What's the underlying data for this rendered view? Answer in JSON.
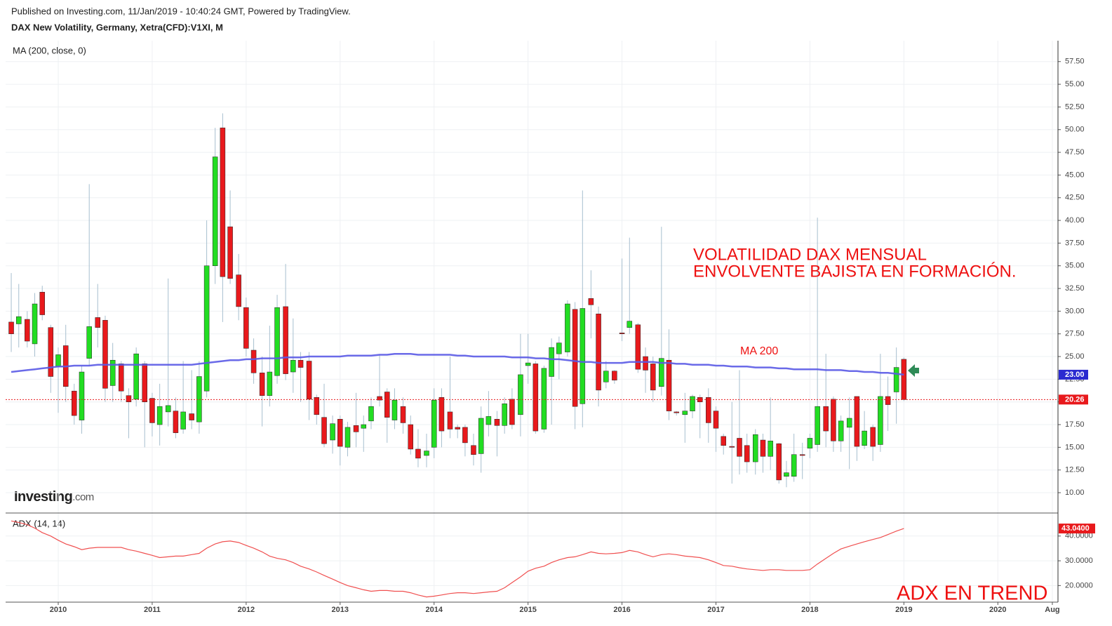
{
  "header": {
    "published": "Published on Investing.com, 11/Jan/2019 - 10:40:24 GMT, Powered by TradingView.",
    "logo": [
      "Investing",
      ".com"
    ]
  },
  "chart_data": {
    "type": "candlestick",
    "title": "DAX New Volatility, Germany, Xetra(CFD):V1XI, M",
    "x": [
      2009.5,
      2009.58,
      2009.67,
      2009.75,
      2009.83,
      2009.92,
      2010,
      2010.08,
      2010.17,
      2010.25,
      2010.33,
      2010.42,
      2010.5,
      2010.58,
      2010.67,
      2010.75,
      2010.83,
      2010.92,
      2011,
      2011.08,
      2011.17,
      2011.25,
      2011.33,
      2011.42,
      2011.5,
      2011.58,
      2011.67,
      2011.75,
      2011.83,
      2011.92,
      2012,
      2012.08,
      2012.17,
      2012.25,
      2012.33,
      2012.42,
      2012.5,
      2012.58,
      2012.67,
      2012.75,
      2012.83,
      2012.92,
      2013,
      2013.08,
      2013.17,
      2013.25,
      2013.33,
      2013.42,
      2013.5,
      2013.58,
      2013.67,
      2013.75,
      2013.83,
      2013.92,
      2014,
      2014.08,
      2014.17,
      2014.25,
      2014.33,
      2014.42,
      2014.5,
      2014.58,
      2014.67,
      2014.75,
      2014.83,
      2014.92,
      2015,
      2015.08,
      2015.17,
      2015.25,
      2015.33,
      2015.42,
      2015.5,
      2015.58,
      2015.67,
      2015.75,
      2015.83,
      2015.92,
      2016,
      2016.08,
      2016.17,
      2016.25,
      2016.33,
      2016.42,
      2016.5,
      2016.58,
      2016.67,
      2016.75,
      2016.83,
      2016.92,
      2017,
      2017.08,
      2017.17,
      2017.25,
      2017.33,
      2017.42,
      2017.5,
      2017.58,
      2017.67,
      2017.75,
      2017.83,
      2017.92,
      2018,
      2018.08,
      2018.17,
      2018.25,
      2018.33,
      2018.42,
      2018.5,
      2018.58,
      2018.67,
      2018.75,
      2018.83,
      2018.92,
      2019
    ],
    "open": [
      28.8,
      28.6,
      29.1,
      26.4,
      32.1,
      28.2,
      23.9,
      26.2,
      21.2,
      18,
      24.8,
      29.3,
      29,
      21.8,
      24.2,
      20.7,
      20.3,
      24.2,
      20.4,
      17.5,
      18.9,
      19,
      17,
      18.7,
      17.8,
      21.2,
      35,
      50.2,
      39.3,
      34,
      30.4,
      25.7,
      23.2,
      20.7,
      22.9,
      30.5,
      23.3,
      24.6,
      24.5,
      20.5,
      18.3,
      15.8,
      18.1,
      15,
      17.4,
      17.1,
      17.9,
      20.6,
      21.1,
      18,
      19.5,
      17.5,
      14.8,
      14.1,
      15,
      20.5,
      18.9,
      17.2,
      17.2,
      15.2,
      14.3,
      17.5,
      18.1,
      17.4,
      20.3,
      18.6,
      24,
      24.2,
      17,
      22.8,
      25.3,
      25.5,
      30.2,
      19.8,
      31.4,
      29.7,
      22.2,
      23.4,
      27.6,
      28.2,
      28.5,
      25,
      24.2,
      21.7,
      24.6,
      18.9,
      18.6,
      19,
      20.5,
      20.5,
      19,
      16.2,
      15.1,
      16,
      15.2,
      13.4,
      15.8,
      14,
      15.4,
      11.8,
      11.8,
      14.2,
      14.9,
      15.3,
      19.5,
      20.3,
      15.7,
      17.2,
      20.6,
      15.2,
      17.2,
      15.3,
      20.6,
      21.1,
      24.7
    ],
    "high": [
      34.2,
      33,
      30,
      32,
      32.8,
      28.5,
      26,
      28.5,
      22,
      24,
      44,
      33,
      29.5,
      26.5,
      24.5,
      21.5,
      26,
      24.5,
      21,
      22,
      33.6,
      20.5,
      24.5,
      23.5,
      24.5,
      40,
      50.2,
      51.8,
      43.3,
      36.3,
      31.5,
      27,
      25,
      28.4,
      31.8,
      35.2,
      29.2,
      25.5,
      25.5,
      20.8,
      22,
      18.5,
      18.5,
      17.8,
      21,
      18.5,
      20.5,
      25.2,
      21.5,
      21.5,
      20.5,
      18.5,
      17,
      16.5,
      21.5,
      21.5,
      25,
      17.5,
      17.5,
      16.5,
      19.5,
      21.2,
      19,
      20.5,
      21.5,
      27.5,
      27.5,
      24.5,
      24,
      27,
      27.2,
      31.2,
      31,
      43.3,
      34.5,
      30.5,
      24.5,
      23.5,
      35.8,
      38.1,
      28.7,
      26,
      25,
      39.3,
      28,
      19,
      21,
      20.8,
      20.8,
      21.5,
      19.5,
      16.5,
      20,
      23.5,
      16.5,
      17,
      16.5,
      20.5,
      15.5,
      13.5,
      16.5,
      15.5,
      16.5,
      40.3,
      25.3,
      20.6,
      18.5,
      20.5,
      20.6,
      19,
      17.5,
      25.3,
      22.8,
      26,
      24.9
    ],
    "low": [
      25.5,
      26,
      26,
      25,
      29,
      21,
      18.8,
      20,
      17.5,
      16.5,
      24,
      26,
      20,
      20,
      20,
      16,
      19.5,
      15,
      16.2,
      15.2,
      17.3,
      16,
      16.5,
      17,
      16.5,
      20.5,
      33,
      28.8,
      33,
      29,
      25,
      22,
      17.3,
      19.5,
      22,
      22.4,
      21,
      20,
      18,
      17.5,
      15,
      14.3,
      13,
      14,
      15,
      14.5,
      17,
      19.5,
      15.5,
      17,
      16.5,
      14.2,
      12.8,
      12.8,
      13.8,
      15,
      16,
      16,
      14,
      13,
      12.2,
      16.2,
      14,
      16.5,
      17,
      16.2,
      22,
      16.5,
      16.6,
      17.5,
      22.5,
      25,
      17,
      17.2,
      27,
      19.5,
      21.5,
      22,
      26.7,
      27.5,
      23.2,
      21,
      20,
      20.7,
      18,
      18.5,
      15.5,
      18.2,
      16,
      15.5,
      14.5,
      14.2,
      11,
      12,
      12.2,
      12,
      12.2,
      12.5,
      11,
      10.6,
      11.2,
      11.5,
      13.8,
      14.5,
      15,
      14.5,
      14.5,
      12.6,
      13.5,
      14.8,
      13.5,
      14.5,
      16.8,
      17.6,
      20.1
    ],
    "close": [
      27.5,
      29.4,
      26.7,
      30.8,
      29.6,
      22.8,
      25.2,
      21.7,
      18.5,
      23.3,
      28.3,
      28.2,
      21.5,
      24.6,
      21.2,
      20,
      25.3,
      20,
      17.7,
      19.5,
      19.6,
      16.6,
      18.9,
      18,
      22.8,
      35,
      47,
      33.8,
      33.6,
      30.5,
      25.9,
      23.2,
      20.7,
      23.3,
      30.4,
      23.1,
      24.6,
      23.8,
      20.3,
      18.6,
      15.4,
      17.6,
      15.1,
      17.2,
      16.7,
      17.5,
      19.5,
      20.2,
      18.3,
      20.2,
      17.7,
      14.8,
      13.8,
      14.6,
      20.2,
      16.8,
      17,
      17,
      15.5,
      14.2,
      18.2,
      18.4,
      17.4,
      19.8,
      17.5,
      23,
      24.3,
      16.8,
      23.7,
      26,
      26.5,
      30.8,
      19.5,
      30.3,
      30.7,
      21.3,
      23.4,
      22.4,
      27.5,
      28.9,
      23.6,
      23.5,
      21.3,
      24.8,
      19,
      18.8,
      19,
      20.6,
      20,
      17.7,
      17.1,
      15.2,
      15,
      14,
      13.4,
      16.4,
      14,
      15.7,
      11.4,
      12.2,
      14.2,
      14.1,
      16,
      19.5,
      16.8,
      15.7,
      17.9,
      18.2,
      15.1,
      16.8,
      15.1,
      20.6,
      19.7,
      23.8,
      20.26
    ],
    "up_color": "#22dd22",
    "down_color": "#e8191c",
    "wick_color": "#a7bfcf",
    "xlim": [
      2009.44,
      2020.64
    ],
    "xticks": [
      2010,
      2011,
      2012,
      2013,
      2014,
      2015,
      2016,
      2017,
      2018,
      2019,
      2020,
      {
        "value": 2020.58,
        "label": "Aug"
      }
    ],
    "ylim": [
      7.76,
      59.8
    ],
    "yticks": [
      {
        "value": 10,
        "label": "10.00"
      },
      {
        "value": 12.5,
        "label": "12.50"
      },
      {
        "value": 15,
        "label": "15.00"
      },
      {
        "value": 17.5,
        "label": "17.50"
      },
      {
        "value": 20,
        "label": "20.00"
      },
      {
        "value": 22.5,
        "label": "22.50"
      },
      {
        "value": 25,
        "label": "25.00"
      },
      {
        "value": 27.5,
        "label": "27.50"
      },
      {
        "value": 30,
        "label": "30.00"
      },
      {
        "value": 32.5,
        "label": "32.50"
      },
      {
        "value": 35,
        "label": "35.00"
      },
      {
        "value": 37.5,
        "label": "37.50"
      },
      {
        "value": 40,
        "label": "40.00"
      },
      {
        "value": 42.5,
        "label": "42.50"
      },
      {
        "value": 45,
        "label": "45.00"
      },
      {
        "value": 47.5,
        "label": "47.50"
      },
      {
        "value": 50,
        "label": "50.00"
      },
      {
        "value": 52.5,
        "label": "52.50"
      },
      {
        "value": 55,
        "label": "55.00"
      },
      {
        "value": 57.5,
        "label": "57.50"
      }
    ],
    "grid": true,
    "series": [
      {
        "name": "MA (200, close, 0)",
        "color": "#5a5ae6",
        "values": [
          23.3,
          23.4,
          23.5,
          23.6,
          23.7,
          23.8,
          23.9,
          23.9,
          24.0,
          24.0,
          24.0,
          24.1,
          24.1,
          24.1,
          24.1,
          24.1,
          24.1,
          24.1,
          24.1,
          24.1,
          24.1,
          24.1,
          24.1,
          24.1,
          24.2,
          24.3,
          24.4,
          24.5,
          24.6,
          24.6,
          24.7,
          24.7,
          24.8,
          24.8,
          24.8,
          24.9,
          24.9,
          24.9,
          25.0,
          25.0,
          25.0,
          25.0,
          25.0,
          25.1,
          25.1,
          25.1,
          25.1,
          25.2,
          25.2,
          25.3,
          25.3,
          25.3,
          25.2,
          25.2,
          25.2,
          25.2,
          25.2,
          25.1,
          25.1,
          25.0,
          25.0,
          25.0,
          25.0,
          25.0,
          24.9,
          24.9,
          24.9,
          24.8,
          24.8,
          24.7,
          24.7,
          24.6,
          24.5,
          24.4,
          24.4,
          24.3,
          24.3,
          24.3,
          24.3,
          24.4,
          24.4,
          24.4,
          24.4,
          24.3,
          24.3,
          24.2,
          24.2,
          24.1,
          24.1,
          24.1,
          24.0,
          24.0,
          23.9,
          23.9,
          23.9,
          23.8,
          23.8,
          23.8,
          23.7,
          23.7,
          23.6,
          23.6,
          23.6,
          23.6,
          23.5,
          23.5,
          23.5,
          23.4,
          23.4,
          23.3,
          23.3,
          23.2,
          23.2,
          23.1,
          23.0
        ],
        "value_labels": [
          null,
          null,
          null,
          null,
          null,
          null,
          null,
          null,
          null,
          null,
          null,
          null,
          null,
          null,
          null,
          null,
          null,
          null,
          null,
          null,
          null,
          null,
          null,
          null,
          null,
          null,
          null,
          null,
          null,
          null,
          null,
          null,
          null,
          null,
          null,
          null,
          null,
          null,
          null,
          null,
          null,
          null,
          null,
          null,
          null,
          null,
          null,
          null,
          null,
          null,
          null,
          null,
          null,
          null,
          null,
          null,
          null,
          null,
          null,
          null,
          null,
          null,
          null,
          null,
          null,
          null,
          null,
          null,
          null,
          null,
          null,
          null,
          null,
          null,
          null,
          null,
          null,
          null,
          null,
          null,
          null,
          null,
          null,
          null,
          null,
          null,
          null,
          null,
          null,
          null,
          null,
          null,
          null,
          null,
          null,
          null,
          null,
          null,
          null,
          null,
          null,
          null,
          null,
          null,
          null,
          null,
          null,
          null,
          null,
          null,
          null,
          null,
          null,
          null,
          "23.00"
        ]
      }
    ],
    "annotations": [
      "VOLATILIDAD DAX MENSUAL",
      "ENVOLVENTE BAJISTA EN FORMACIÓN.",
      "MA 200",
      "ADX EN TREND"
    ],
    "indicator": {
      "type": "line",
      "name": "ADX (14, 14)",
      "color": "#f05050",
      "values": [
        46.1,
        45.5,
        44.6,
        43.2,
        41.4,
        40.0,
        38.3,
        36.8,
        35.7,
        34.5,
        35.1,
        35.4,
        35.4,
        35.4,
        35.4,
        34.5,
        33.9,
        33.0,
        32.2,
        31.3,
        31.6,
        31.9,
        31.9,
        32.5,
        33.0,
        35.1,
        36.8,
        37.7,
        38.0,
        37.4,
        36.2,
        35.1,
        33.6,
        31.9,
        31.0,
        30.4,
        29.3,
        27.8,
        26.7,
        25.5,
        24.1,
        22.6,
        21.2,
        20.0,
        19.1,
        18.3,
        17.7,
        18.0,
        18.0,
        17.7,
        17.7,
        17.1,
        16.2,
        15.4,
        15.7,
        16.2,
        16.8,
        17.1,
        17.1,
        16.8,
        17.1,
        17.4,
        17.7,
        19.1,
        21.2,
        23.5,
        25.8,
        27.0,
        27.8,
        29.3,
        30.4,
        31.3,
        31.6,
        32.5,
        33.6,
        33.0,
        32.8,
        33.0,
        33.3,
        34.2,
        33.6,
        32.5,
        31.6,
        32.5,
        32.8,
        32.5,
        31.9,
        31.6,
        31.3,
        30.4,
        29.3,
        28.1,
        27.8,
        27.2,
        26.7,
        26.4,
        26.1,
        26.4,
        26.4,
        26.1,
        26.1,
        26.1,
        26.4,
        28.7,
        31.0,
        33.0,
        34.8,
        35.9,
        36.8,
        37.7,
        38.6,
        39.4,
        40.6,
        42.0,
        43.04
      ],
      "value_labels": [
        null,
        null,
        null,
        null,
        null,
        null,
        null,
        null,
        null,
        null,
        null,
        null,
        null,
        null,
        null,
        null,
        null,
        null,
        null,
        null,
        null,
        null,
        null,
        null,
        null,
        null,
        null,
        null,
        null,
        null,
        null,
        null,
        null,
        null,
        null,
        null,
        null,
        null,
        null,
        null,
        null,
        null,
        null,
        null,
        null,
        null,
        null,
        null,
        null,
        null,
        null,
        null,
        null,
        null,
        null,
        null,
        null,
        null,
        null,
        null,
        null,
        null,
        null,
        null,
        null,
        null,
        null,
        null,
        null,
        null,
        null,
        null,
        null,
        null,
        null,
        null,
        null,
        null,
        null,
        null,
        null,
        null,
        null,
        null,
        null,
        null,
        null,
        null,
        null,
        null,
        null,
        null,
        null,
        null,
        null,
        null,
        null,
        null,
        null,
        null,
        null,
        null,
        null,
        null,
        null,
        null,
        null,
        null,
        null,
        null,
        null,
        null,
        null,
        null,
        "43.0400"
      ],
      "ylim": [
        13.3,
        49.3
      ],
      "yticks": [
        {
          "value": 20,
          "label": "20.0000"
        },
        {
          "value": 30,
          "label": "30.0000"
        },
        {
          "value": 40,
          "label": "40.0000"
        }
      ]
    }
  }
}
